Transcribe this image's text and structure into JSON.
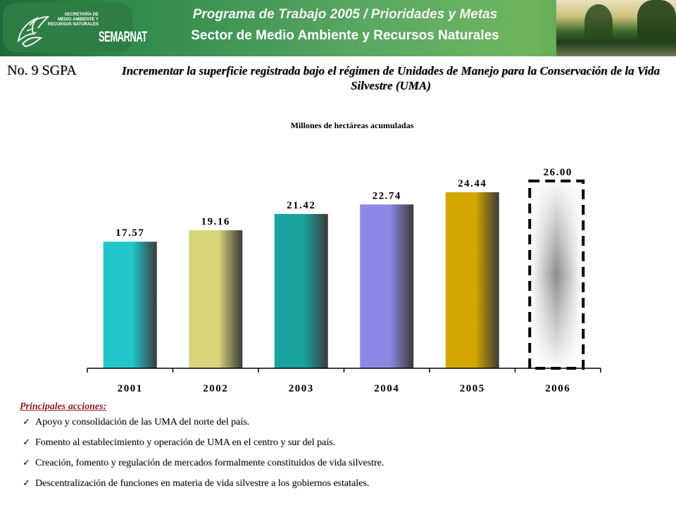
{
  "header": {
    "line1": "Programa de Trabajo 2005 / Prioridades y Metas",
    "line2": "Sector de Medio Ambiente y Recursos Naturales",
    "logo_text": "SECRETARÍA DE\nMEDIO AMBIENTE Y\nRECURSOS NATURALES",
    "logo_brand": "SEMARNAT",
    "logo_icon": "eagle-emblem-icon"
  },
  "slide": {
    "id": "No. 9 SGPA",
    "title": "Incrementar la superficie registrada bajo el régimen de Unidades de Manejo para la Conservación de la Vida Silvestre (UMA)"
  },
  "chart_data": {
    "type": "bar",
    "title": "Millones de hectáreas acumuladas",
    "categories": [
      "2001",
      "2002",
      "2003",
      "2004",
      "2005",
      "2006"
    ],
    "values": [
      17.57,
      19.16,
      21.42,
      22.74,
      24.44,
      26.0
    ],
    "value_labels": [
      "17.57",
      "19.16",
      "21.42",
      "22.74",
      "24.44",
      "26.00"
    ],
    "bar_colors": [
      "#22c5c8",
      "#d8d47a",
      "#1aa3a0",
      "#8a8ae6",
      "#d4a800",
      "#999999"
    ],
    "target_category": "2006",
    "grid": false,
    "legend": "none"
  },
  "actions": {
    "heading": "Principales acciones:",
    "check_icon": "checkmark-icon",
    "items": [
      "Apoyo y consolidación de las UMA del norte del país.",
      "Fomento al establecimiento y operación de UMA en el centro y sur del país.",
      "Creación, fomento y regulación de mercados formalmente constituidos de vida silvestre.",
      "Descentralización de funciones en materia de vida silvestre a los gobiernos estatales."
    ]
  }
}
